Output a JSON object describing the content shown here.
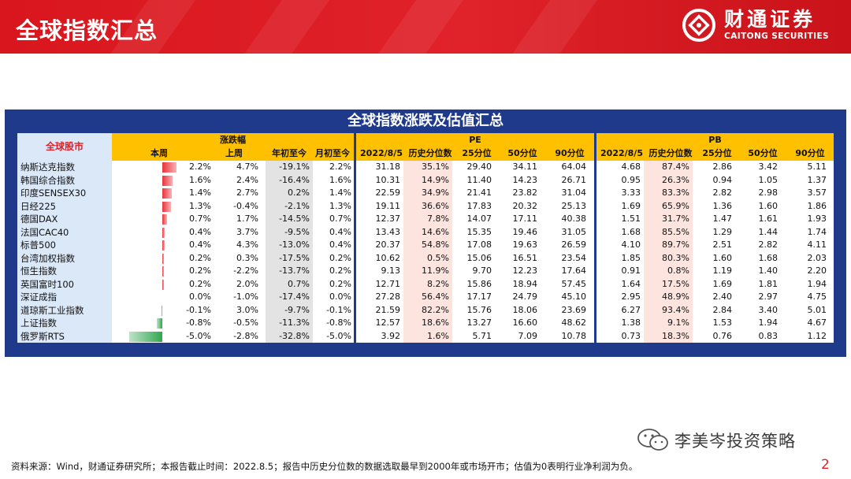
{
  "header": {
    "title": "全球指数汇总",
    "brand_cn": "财通证券",
    "brand_en": "CAITONG SECURITIES"
  },
  "table": {
    "title": "全球指数涨跌及估值汇总",
    "name_header": "全球股市",
    "group_change": "涨跌幅",
    "group_pe": "PE",
    "group_pb": "PB",
    "change_cols": [
      "本周",
      "上周",
      "年初至今",
      "月初至今"
    ],
    "val_cols": [
      "2022/8/5",
      "历史分位数",
      "25分位",
      "50分位",
      "90分位"
    ],
    "rows": [
      {
        "name": "纳斯达克指数",
        "week": "2.2%",
        "lastweek": "4.7%",
        "ytd": "-19.1%",
        "mtd": "2.2%",
        "pe": [
          "31.18",
          "35.1%",
          "29.40",
          "34.11",
          "64.04"
        ],
        "pb": [
          "4.68",
          "87.4%",
          "2.86",
          "3.42",
          "5.11"
        ]
      },
      {
        "name": "韩国综合指数",
        "week": "1.6%",
        "lastweek": "2.4%",
        "ytd": "-16.4%",
        "mtd": "1.6%",
        "pe": [
          "10.31",
          "14.9%",
          "11.40",
          "14.23",
          "26.71"
        ],
        "pb": [
          "0.95",
          "26.3%",
          "0.94",
          "1.05",
          "1.37"
        ]
      },
      {
        "name": "印度SENSEX30",
        "week": "1.4%",
        "lastweek": "2.7%",
        "ytd": "0.2%",
        "mtd": "1.4%",
        "pe": [
          "22.59",
          "34.9%",
          "21.41",
          "23.82",
          "31.04"
        ],
        "pb": [
          "3.33",
          "83.3%",
          "2.82",
          "2.98",
          "3.57"
        ]
      },
      {
        "name": "日经225",
        "week": "1.3%",
        "lastweek": "-0.4%",
        "ytd": "-2.1%",
        "mtd": "1.3%",
        "pe": [
          "19.11",
          "36.6%",
          "17.83",
          "20.32",
          "25.13"
        ],
        "pb": [
          "1.69",
          "65.9%",
          "1.36",
          "1.60",
          "1.86"
        ]
      },
      {
        "name": "德国DAX",
        "week": "0.7%",
        "lastweek": "1.7%",
        "ytd": "-14.5%",
        "mtd": "0.7%",
        "pe": [
          "12.37",
          "7.8%",
          "14.07",
          "17.11",
          "40.38"
        ],
        "pb": [
          "1.51",
          "31.7%",
          "1.47",
          "1.61",
          "1.93"
        ]
      },
      {
        "name": "法国CAC40",
        "week": "0.4%",
        "lastweek": "3.7%",
        "ytd": "-9.5%",
        "mtd": "0.4%",
        "pe": [
          "13.43",
          "14.6%",
          "15.35",
          "19.46",
          "31.05"
        ],
        "pb": [
          "1.68",
          "85.5%",
          "1.29",
          "1.44",
          "1.74"
        ]
      },
      {
        "name": "标普500",
        "week": "0.4%",
        "lastweek": "4.3%",
        "ytd": "-13.0%",
        "mtd": "0.4%",
        "pe": [
          "20.37",
          "54.8%",
          "17.08",
          "19.63",
          "26.59"
        ],
        "pb": [
          "4.10",
          "89.7%",
          "2.51",
          "2.82",
          "4.11"
        ]
      },
      {
        "name": "台湾加权指数",
        "week": "0.2%",
        "lastweek": "0.3%",
        "ytd": "-17.5%",
        "mtd": "0.2%",
        "pe": [
          "10.62",
          "0.5%",
          "15.06",
          "16.51",
          "23.54"
        ],
        "pb": [
          "1.85",
          "80.3%",
          "1.60",
          "1.68",
          "2.03"
        ]
      },
      {
        "name": "恒生指数",
        "week": "0.2%",
        "lastweek": "-2.2%",
        "ytd": "-13.7%",
        "mtd": "0.2%",
        "pe": [
          "9.13",
          "11.9%",
          "9.70",
          "12.23",
          "17.64"
        ],
        "pb": [
          "0.91",
          "0.8%",
          "1.19",
          "1.40",
          "2.20"
        ]
      },
      {
        "name": "英国富时100",
        "week": "0.2%",
        "lastweek": "2.0%",
        "ytd": "0.7%",
        "mtd": "0.2%",
        "pe": [
          "12.71",
          "8.2%",
          "15.86",
          "18.94",
          "57.45"
        ],
        "pb": [
          "1.64",
          "17.5%",
          "1.69",
          "1.81",
          "1.94"
        ]
      },
      {
        "name": "深证成指",
        "week": "0.0%",
        "lastweek": "-1.0%",
        "ytd": "-17.4%",
        "mtd": "0.0%",
        "pe": [
          "27.28",
          "56.4%",
          "17.17",
          "24.79",
          "45.10"
        ],
        "pb": [
          "2.95",
          "48.9%",
          "2.40",
          "2.97",
          "4.75"
        ]
      },
      {
        "name": "道琼斯工业指数",
        "week": "-0.1%",
        "lastweek": "3.0%",
        "ytd": "-9.7%",
        "mtd": "-0.1%",
        "pe": [
          "21.59",
          "82.2%",
          "15.76",
          "18.06",
          "23.69"
        ],
        "pb": [
          "6.27",
          "93.4%",
          "2.84",
          "3.40",
          "5.01"
        ]
      },
      {
        "name": "上证指数",
        "week": "-0.8%",
        "lastweek": "-0.5%",
        "ytd": "-11.3%",
        "mtd": "-0.8%",
        "pe": [
          "12.57",
          "18.6%",
          "13.27",
          "16.60",
          "48.62"
        ],
        "pb": [
          "1.38",
          "9.1%",
          "1.53",
          "1.94",
          "4.67"
        ]
      },
      {
        "name": "俄罗斯RTS",
        "week": "-5.0%",
        "lastweek": "-2.8%",
        "ytd": "-32.8%",
        "mtd": "-5.0%",
        "pe": [
          "3.92",
          "1.6%",
          "5.71",
          "7.09",
          "10.78"
        ],
        "pb": [
          "0.73",
          "18.3%",
          "0.76",
          "0.83",
          "1.12"
        ]
      }
    ]
  },
  "colors": {
    "brand_red": "#e0222a",
    "frame_blue": "#1f3a8a",
    "header_yellow": "#ffc000",
    "positive_bar": "#e8323a",
    "negative_bar": "#2fa84f"
  },
  "footer": {
    "source": "资料来源：Wind，财通证券研究所；本报告截止时间：2022.8.5；报告中历史分位数的数据选取最早到2000年或市场开市；估值为0表明行业净利润为负。",
    "watermark": "李美岑投资策略",
    "page_number": "2"
  }
}
